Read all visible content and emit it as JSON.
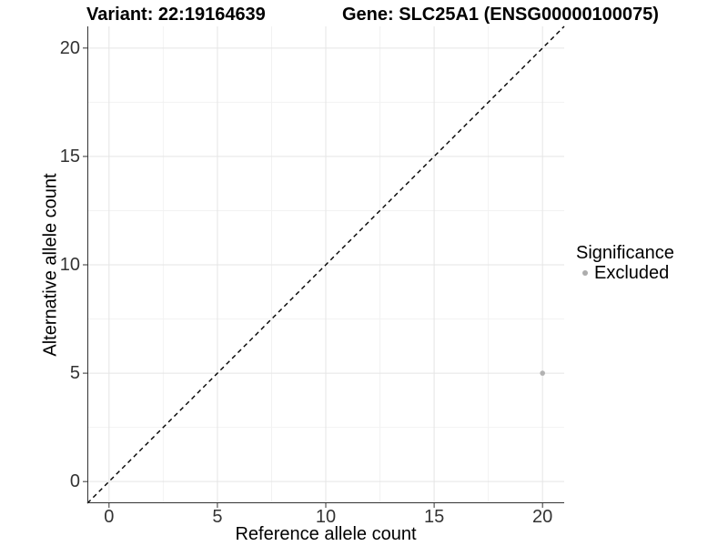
{
  "title": {
    "variant_label": "Variant: 22:19164639",
    "gene_label": "Gene: SLC25A1 (ENSG00000100075)"
  },
  "chart_data": {
    "type": "scatter",
    "title": "Variant: 22:19164639    Gene: SLC25A1 (ENSG00000100075)",
    "xlabel": "Reference allele count",
    "ylabel": "Alternative allele count",
    "xlim": [
      -1,
      21
    ],
    "ylim": [
      -1,
      21
    ],
    "xticks": [
      0,
      5,
      10,
      15,
      20
    ],
    "yticks": [
      0,
      5,
      10,
      15,
      20
    ],
    "grid": "major and minor, light gray on white",
    "identity_line": {
      "style": "dashed",
      "color": "#000000",
      "from": [
        -1,
        -1
      ],
      "to": [
        21,
        21
      ]
    },
    "series": [
      {
        "name": "Excluded",
        "color": "#b2b2b2",
        "points": [
          [
            20,
            5
          ]
        ]
      }
    ],
    "legend": {
      "title": "Significance",
      "position": "right",
      "items": [
        {
          "label": "Excluded",
          "color": "#adadad"
        }
      ]
    }
  },
  "colors": {
    "background": "#ffffff",
    "axis_line": "#333333",
    "tick_label": "#333333",
    "grid_major": "#e5e5e5",
    "grid_minor": "#f2f2f2",
    "point": "#b2b2b2",
    "identity_line": "#000000"
  }
}
